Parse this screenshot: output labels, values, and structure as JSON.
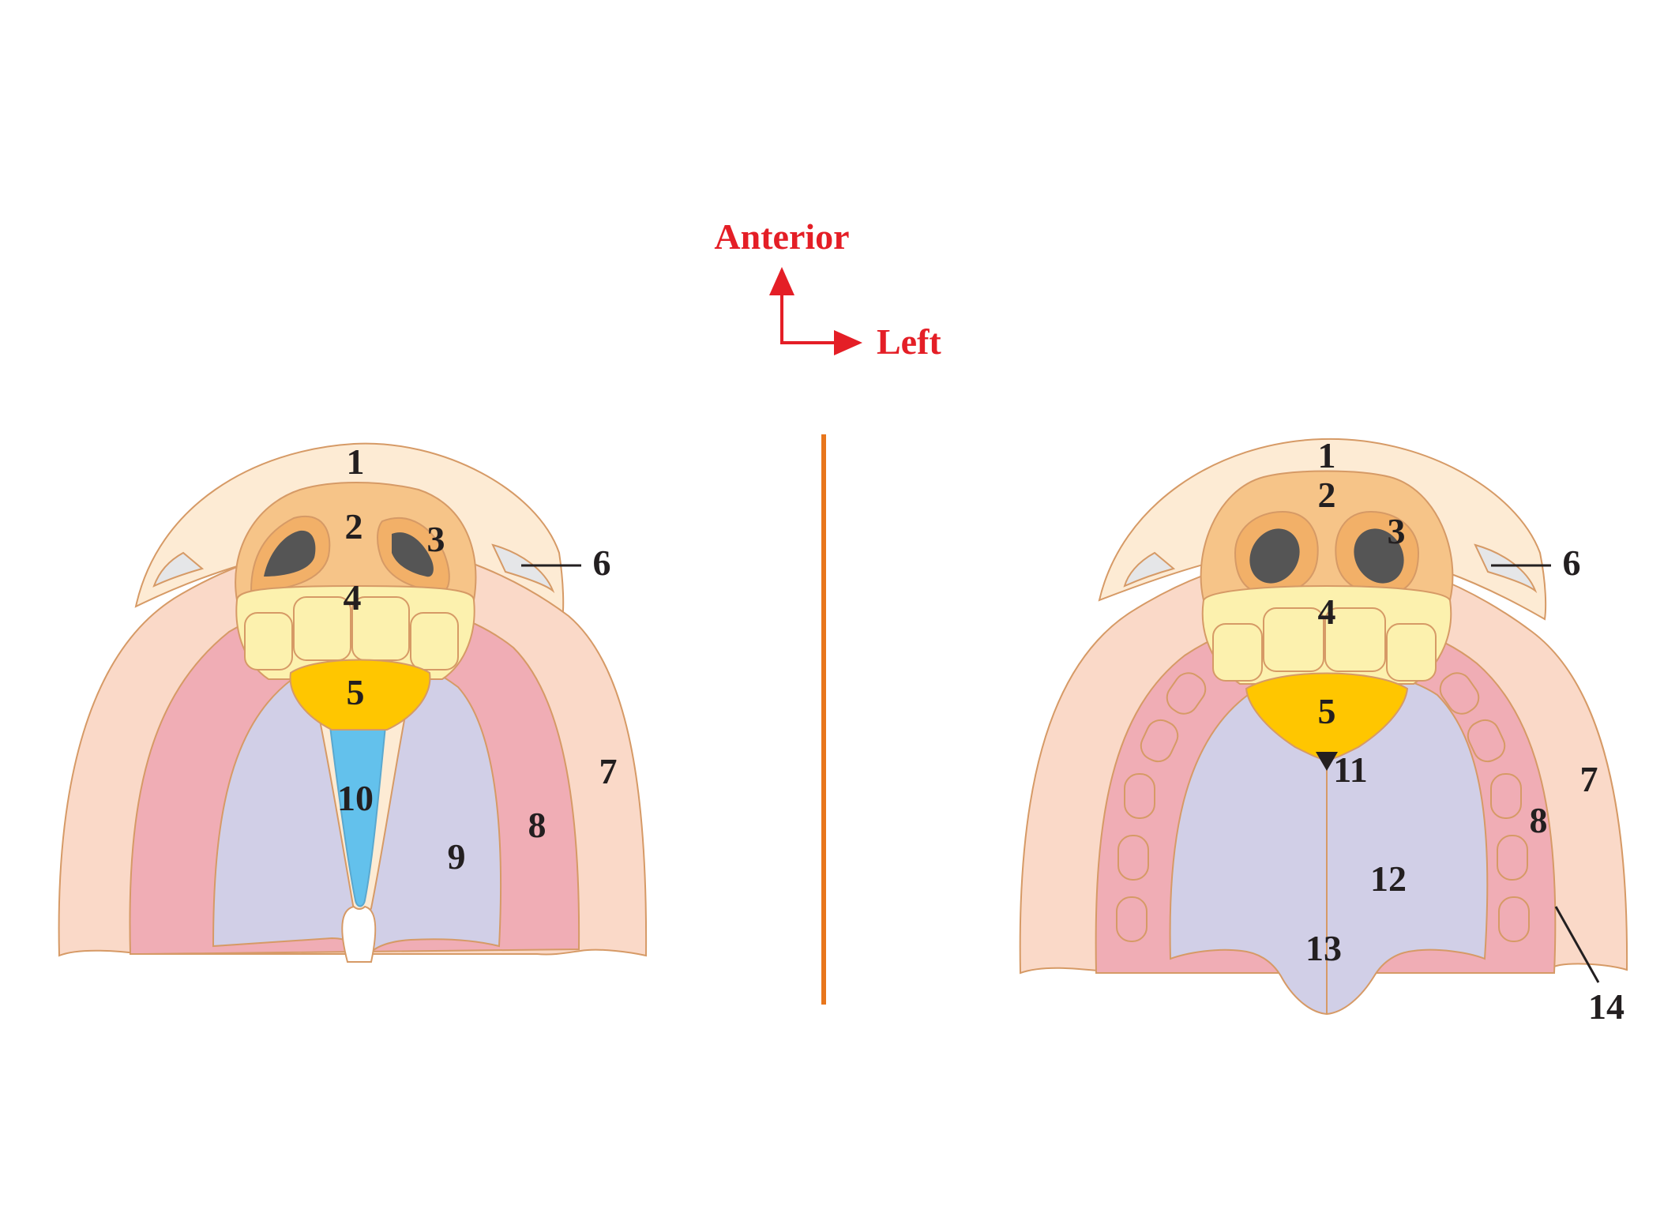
{
  "orientation": {
    "anterior_label": "Anterior",
    "left_label": "Left",
    "color": "#e41e26"
  },
  "divider_color": "#e8761c",
  "colors": {
    "structure_1": "#fdebd4",
    "structure_2": "#f6c488",
    "structure_3": "#f2b068",
    "structure_3_cavity": "#555555",
    "structure_4": "#fcf1ae",
    "structure_5": "#ffc600",
    "structure_6": "#e5e6e8",
    "structure_7": "#fad9c8",
    "structure_8": "#f0adb5",
    "structure_9_12_13": "#d1cfe7",
    "structure_10": "#63c1ec",
    "outline": "#d69a66"
  },
  "left_figure": {
    "labels": {
      "l1": "1",
      "l2": "2",
      "l3": "3",
      "l4": "4",
      "l5": "5",
      "l6": "6",
      "l7": "7",
      "l8": "8",
      "l9": "9",
      "l10": "10"
    }
  },
  "right_figure": {
    "labels": {
      "l1": "1",
      "l2": "2",
      "l3": "3",
      "l4": "4",
      "l5": "5",
      "l6": "6",
      "l7": "7",
      "l8": "8",
      "l11": "11",
      "l12": "12",
      "l13": "13",
      "l14": "14"
    }
  }
}
